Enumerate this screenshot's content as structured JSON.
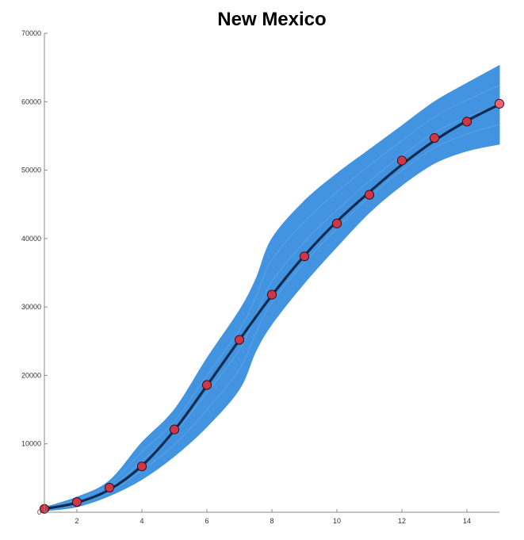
{
  "chart_data": {
    "type": "line",
    "title": "New Mexico",
    "xlabel": "",
    "ylabel": "",
    "xlim": [
      1,
      15
    ],
    "ylim": [
      0,
      70000
    ],
    "x_ticks": [
      2,
      4,
      6,
      8,
      10,
      12,
      14
    ],
    "y_ticks": [
      0,
      10000,
      20000,
      30000,
      40000,
      50000,
      60000,
      70000
    ],
    "grid": false,
    "legend": "none",
    "colors": {
      "band": "#4394e0",
      "fit_line": "#0d2b4f",
      "marker_fill": "#cf3748",
      "marker_edge": "#3a0f16",
      "last_marker_fill": "#f06470"
    },
    "series": [
      {
        "kind": "uncertainty_band",
        "x": [
          1,
          2,
          3,
          4,
          5,
          6,
          7,
          7.5,
          8,
          9,
          10,
          11,
          12,
          13,
          14,
          15
        ],
        "lower": [
          200,
          800,
          2400,
          4800,
          8200,
          12500,
          18000,
          23500,
          27500,
          33500,
          38800,
          43800,
          47800,
          51000,
          52800,
          53800
        ],
        "upper": [
          700,
          2200,
          4600,
          10200,
          15000,
          22500,
          29500,
          34000,
          40000,
          45500,
          49500,
          53000,
          56500,
          60000,
          62700,
          65300
        ]
      },
      {
        "kind": "fit",
        "x": [
          1,
          2,
          3,
          4,
          5,
          6,
          7,
          8,
          9,
          10,
          11,
          12,
          13,
          14,
          15
        ],
        "y": [
          500,
          1400,
          3300,
          6800,
          12000,
          18500,
          25200,
          31700,
          37500,
          42500,
          46800,
          50800,
          54300,
          57200,
          59600
        ]
      },
      {
        "kind": "observed",
        "x": [
          1,
          2,
          3,
          4,
          5,
          6,
          7,
          8,
          9,
          10,
          11,
          12,
          13,
          14,
          15
        ],
        "y": [
          500,
          1500,
          3600,
          6700,
          12100,
          18600,
          25200,
          31800,
          37400,
          42200,
          46400,
          51400,
          54700,
          57100,
          59700
        ]
      }
    ]
  }
}
